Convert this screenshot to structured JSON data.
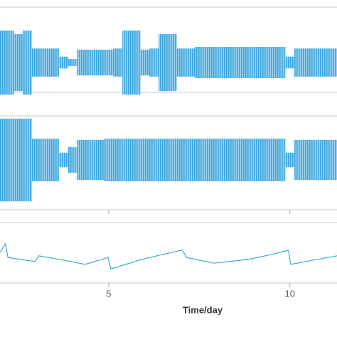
{
  "chart_data": [
    {
      "type": "band",
      "x": [
        2.0,
        2.25,
        2.5,
        2.75,
        3.0,
        3.25,
        3.5,
        3.75,
        4.0,
        4.25,
        4.5,
        4.75,
        5.0,
        5.25,
        5.5,
        5.75,
        6.0,
        6.25,
        6.5,
        6.75,
        7.0,
        7.25,
        7.5,
        7.75,
        8.0,
        8.25,
        8.5,
        8.75,
        9.0,
        9.25,
        9.5,
        9.75,
        10.0,
        10.25,
        10.5,
        10.75,
        11.0,
        11.25
      ],
      "values": [
        0.82,
        0.82,
        0.73,
        0.82,
        0.36,
        0.36,
        0.36,
        0.15,
        0.09,
        0.33,
        0.33,
        0.33,
        0.33,
        0.36,
        0.82,
        0.82,
        0.33,
        0.36,
        0.73,
        0.73,
        0.36,
        0.36,
        0.4,
        0.4,
        0.4,
        0.4,
        0.4,
        0.4,
        0.4,
        0.4,
        0.4,
        0.4,
        0.15,
        0.36,
        0.36,
        0.36,
        0.36,
        0.36
      ],
      "color": "#3aa6dd",
      "xlim": [
        2.0,
        11.3
      ],
      "ylim": [
        -1,
        1
      ]
    },
    {
      "type": "band",
      "x": [
        2.0,
        2.25,
        2.5,
        2.75,
        3.0,
        3.25,
        3.5,
        3.75,
        4.0,
        4.25,
        4.5,
        4.75,
        5.0,
        5.25,
        5.5,
        5.75,
        6.0,
        6.25,
        6.5,
        6.75,
        7.0,
        7.25,
        7.5,
        7.75,
        8.0,
        8.25,
        8.5,
        8.75,
        9.0,
        9.25,
        9.5,
        9.75,
        10.0,
        10.25,
        10.5,
        10.75,
        11.0,
        11.25
      ],
      "values": [
        0.97,
        0.97,
        0.97,
        0.97,
        0.5,
        0.5,
        0.5,
        0.17,
        0.3,
        0.47,
        0.47,
        0.47,
        0.5,
        0.5,
        0.5,
        0.5,
        0.5,
        0.5,
        0.5,
        0.5,
        0.5,
        0.5,
        0.5,
        0.5,
        0.5,
        0.5,
        0.5,
        0.5,
        0.5,
        0.5,
        0.5,
        0.5,
        0.17,
        0.47,
        0.47,
        0.47,
        0.47,
        0.47
      ],
      "color": "#3aa6dd",
      "xlim": [
        2.0,
        11.3
      ],
      "ylim": [
        -1,
        1
      ],
      "xticks": [
        5,
        10
      ]
    },
    {
      "type": "line",
      "x": [
        2.0,
        2.15,
        2.22,
        2.97,
        3.07,
        3.95,
        4.35,
        4.98,
        5.06,
        5.93,
        6.95,
        7.03,
        7.15,
        7.9,
        8.88,
        9.47,
        9.96,
        10.02,
        11.3
      ],
      "values": [
        0.5,
        0.65,
        0.41,
        0.34,
        0.44,
        0.34,
        0.29,
        0.41,
        0.21,
        0.38,
        0.53,
        0.54,
        0.41,
        0.31,
        0.38,
        0.46,
        0.54,
        0.29,
        0.44
      ],
      "color": "#3aa6dd",
      "xlim": [
        2.0,
        11.3
      ],
      "ylim": [
        0,
        1
      ],
      "xticks": [
        5,
        10
      ],
      "xlabel": "Time/day"
    }
  ]
}
